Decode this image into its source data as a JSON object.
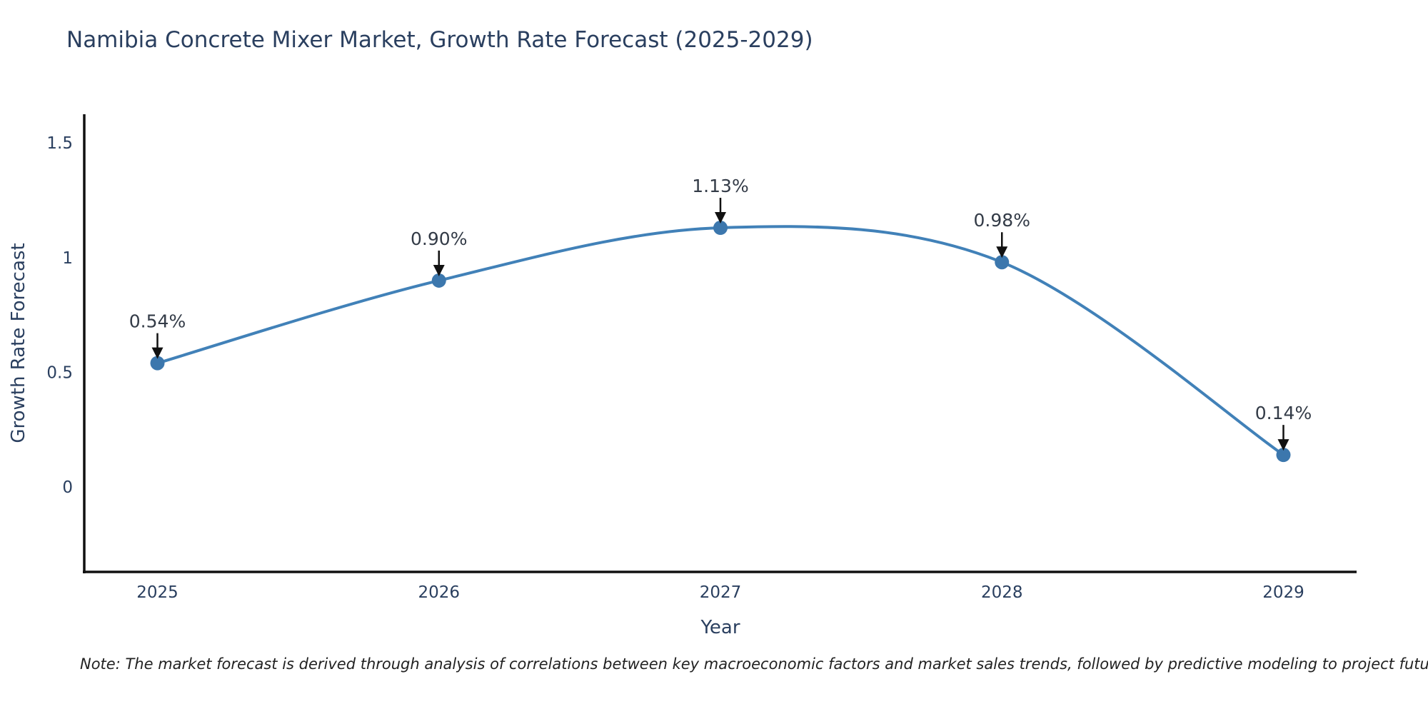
{
  "title": "Namibia Concrete Mixer Market, Growth Rate Forecast (2025-2029)",
  "note": "Note: The market forecast is derived through analysis of correlations between key macroeconomic factors and market sales trends, followed by predictive modeling to project future sales",
  "chart_data": {
    "type": "line",
    "line_shape": "spline",
    "title": "Namibia Concrete Mixer Market, Growth Rate Forecast (2025-2029)",
    "x": [
      2025,
      2026,
      2027,
      2028,
      2029
    ],
    "values": [
      0.54,
      0.9,
      1.13,
      0.98,
      0.14
    ],
    "point_labels": [
      "0.54%",
      "0.90%",
      "1.13%",
      "0.98%",
      "0.14%"
    ],
    "xlabel": "Year",
    "ylabel": "Growth Rate Forecast",
    "xticks": [
      "2025",
      "2026",
      "2027",
      "2028",
      "2029"
    ],
    "yticks": [
      0,
      0.5,
      1,
      1.5
    ],
    "xlim": [
      2024.74,
      2029.26
    ],
    "ylim": [
      -0.37,
      1.625
    ],
    "grid": false,
    "legend_position": "none",
    "line_color": "#4181b8",
    "marker_color": "#3c77ad",
    "axis_color": "#111111",
    "text_color": "#2a3f5f",
    "annotation_color": "#333b47",
    "arrow_color": "#111111"
  }
}
